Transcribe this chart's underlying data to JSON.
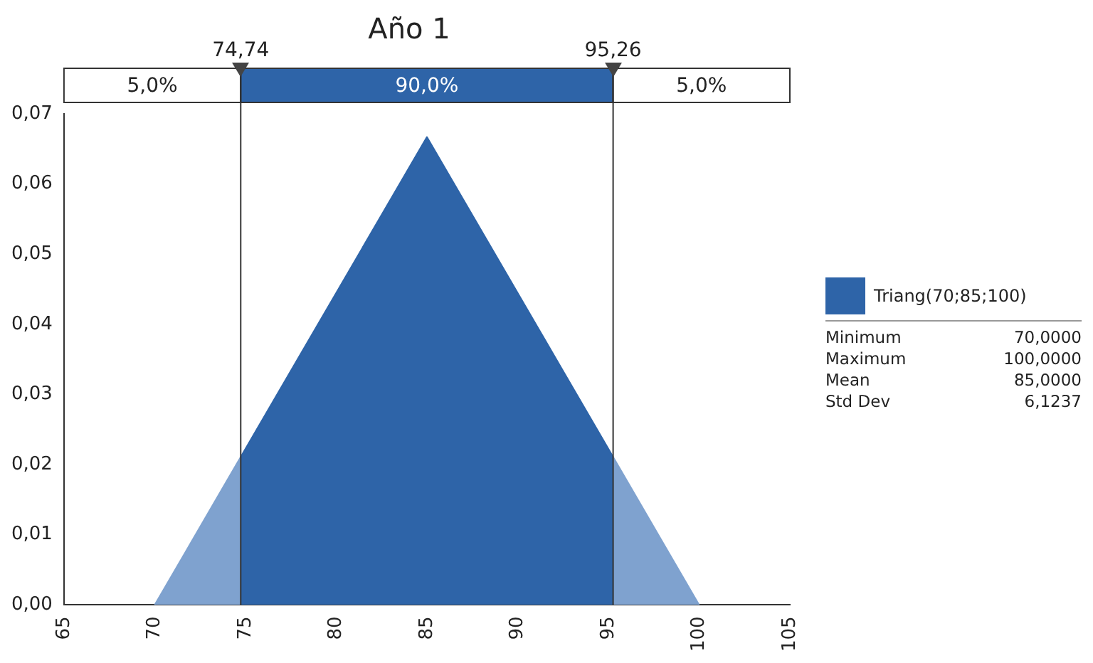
{
  "chart_data": {
    "type": "area",
    "title": "Año 1",
    "series": [
      {
        "color": "#7fa2cf",
        "x": [
          70,
          74.74
        ],
        "values": [
          0,
          0.0211
        ]
      },
      {
        "name": "Triang(70;85;100)",
        "color": "#2e64a8",
        "x": [
          74.74,
          85,
          95.26
        ],
        "values": [
          0.0211,
          0.0667,
          0.0211
        ]
      },
      {
        "color": "#7fa2cf",
        "x": [
          95.26,
          100
        ],
        "values": [
          0.0211,
          0
        ]
      }
    ],
    "xlim": [
      65,
      105
    ],
    "xticks": [
      65,
      70,
      75,
      80,
      85,
      90,
      95,
      100,
      105
    ],
    "ylim": [
      0,
      0.07
    ],
    "yticks": [
      {
        "value": 0,
        "label": "0,00"
      },
      {
        "value": 0.01,
        "label": "0,01"
      },
      {
        "value": 0.02,
        "label": "0,02"
      },
      {
        "value": 0.03,
        "label": "0,03"
      },
      {
        "value": 0.04,
        "label": "0,04"
      },
      {
        "value": 0.05,
        "label": "0,05"
      },
      {
        "value": 0.06,
        "label": "0,06"
      },
      {
        "value": 0.07,
        "label": "0,07"
      }
    ],
    "ref_lines": [
      {
        "axis": "x",
        "value": 74.74,
        "label": "74,74"
      },
      {
        "axis": "x",
        "value": 95.26,
        "label": "95,26"
      }
    ],
    "annotations": [
      "5,0%",
      "90,0%",
      "5,0%",
      "Minimum",
      "70,0000",
      "Maximum",
      "100,0000",
      "Mean",
      "85,0000",
      "Std Dev",
      "6,1237"
    ],
    "grid": false,
    "legend": "right",
    "marker": "none",
    "line_style": "solid"
  }
}
